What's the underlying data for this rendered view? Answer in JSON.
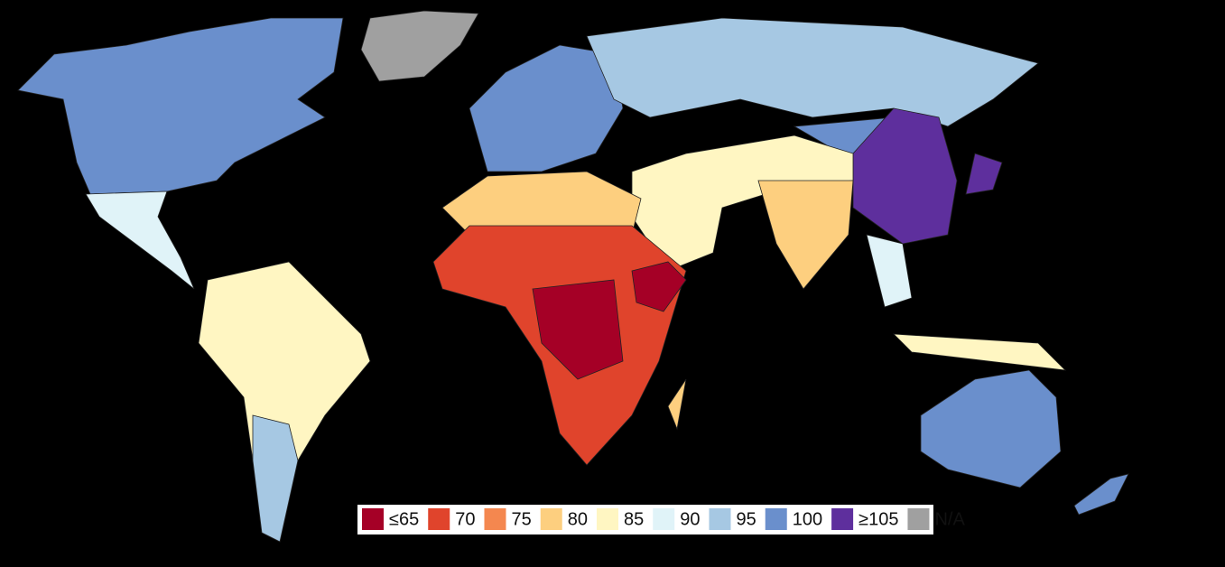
{
  "legend": {
    "items": [
      {
        "label": "≤65",
        "color": "#a50026"
      },
      {
        "label": "70",
        "color": "#e0442c"
      },
      {
        "label": "75",
        "color": "#f4874f"
      },
      {
        "label": "80",
        "color": "#fdcf7f"
      },
      {
        "label": "85",
        "color": "#fff6c2"
      },
      {
        "label": "90",
        "color": "#e0f3f8"
      },
      {
        "label": "95",
        "color": "#a6c8e3"
      },
      {
        "label": "100",
        "color": "#6a8fcc"
      },
      {
        "label": "≥105",
        "color": "#5e2f9d"
      },
      {
        "label": "N/A",
        "color": "#a0a0a0"
      }
    ]
  }
}
